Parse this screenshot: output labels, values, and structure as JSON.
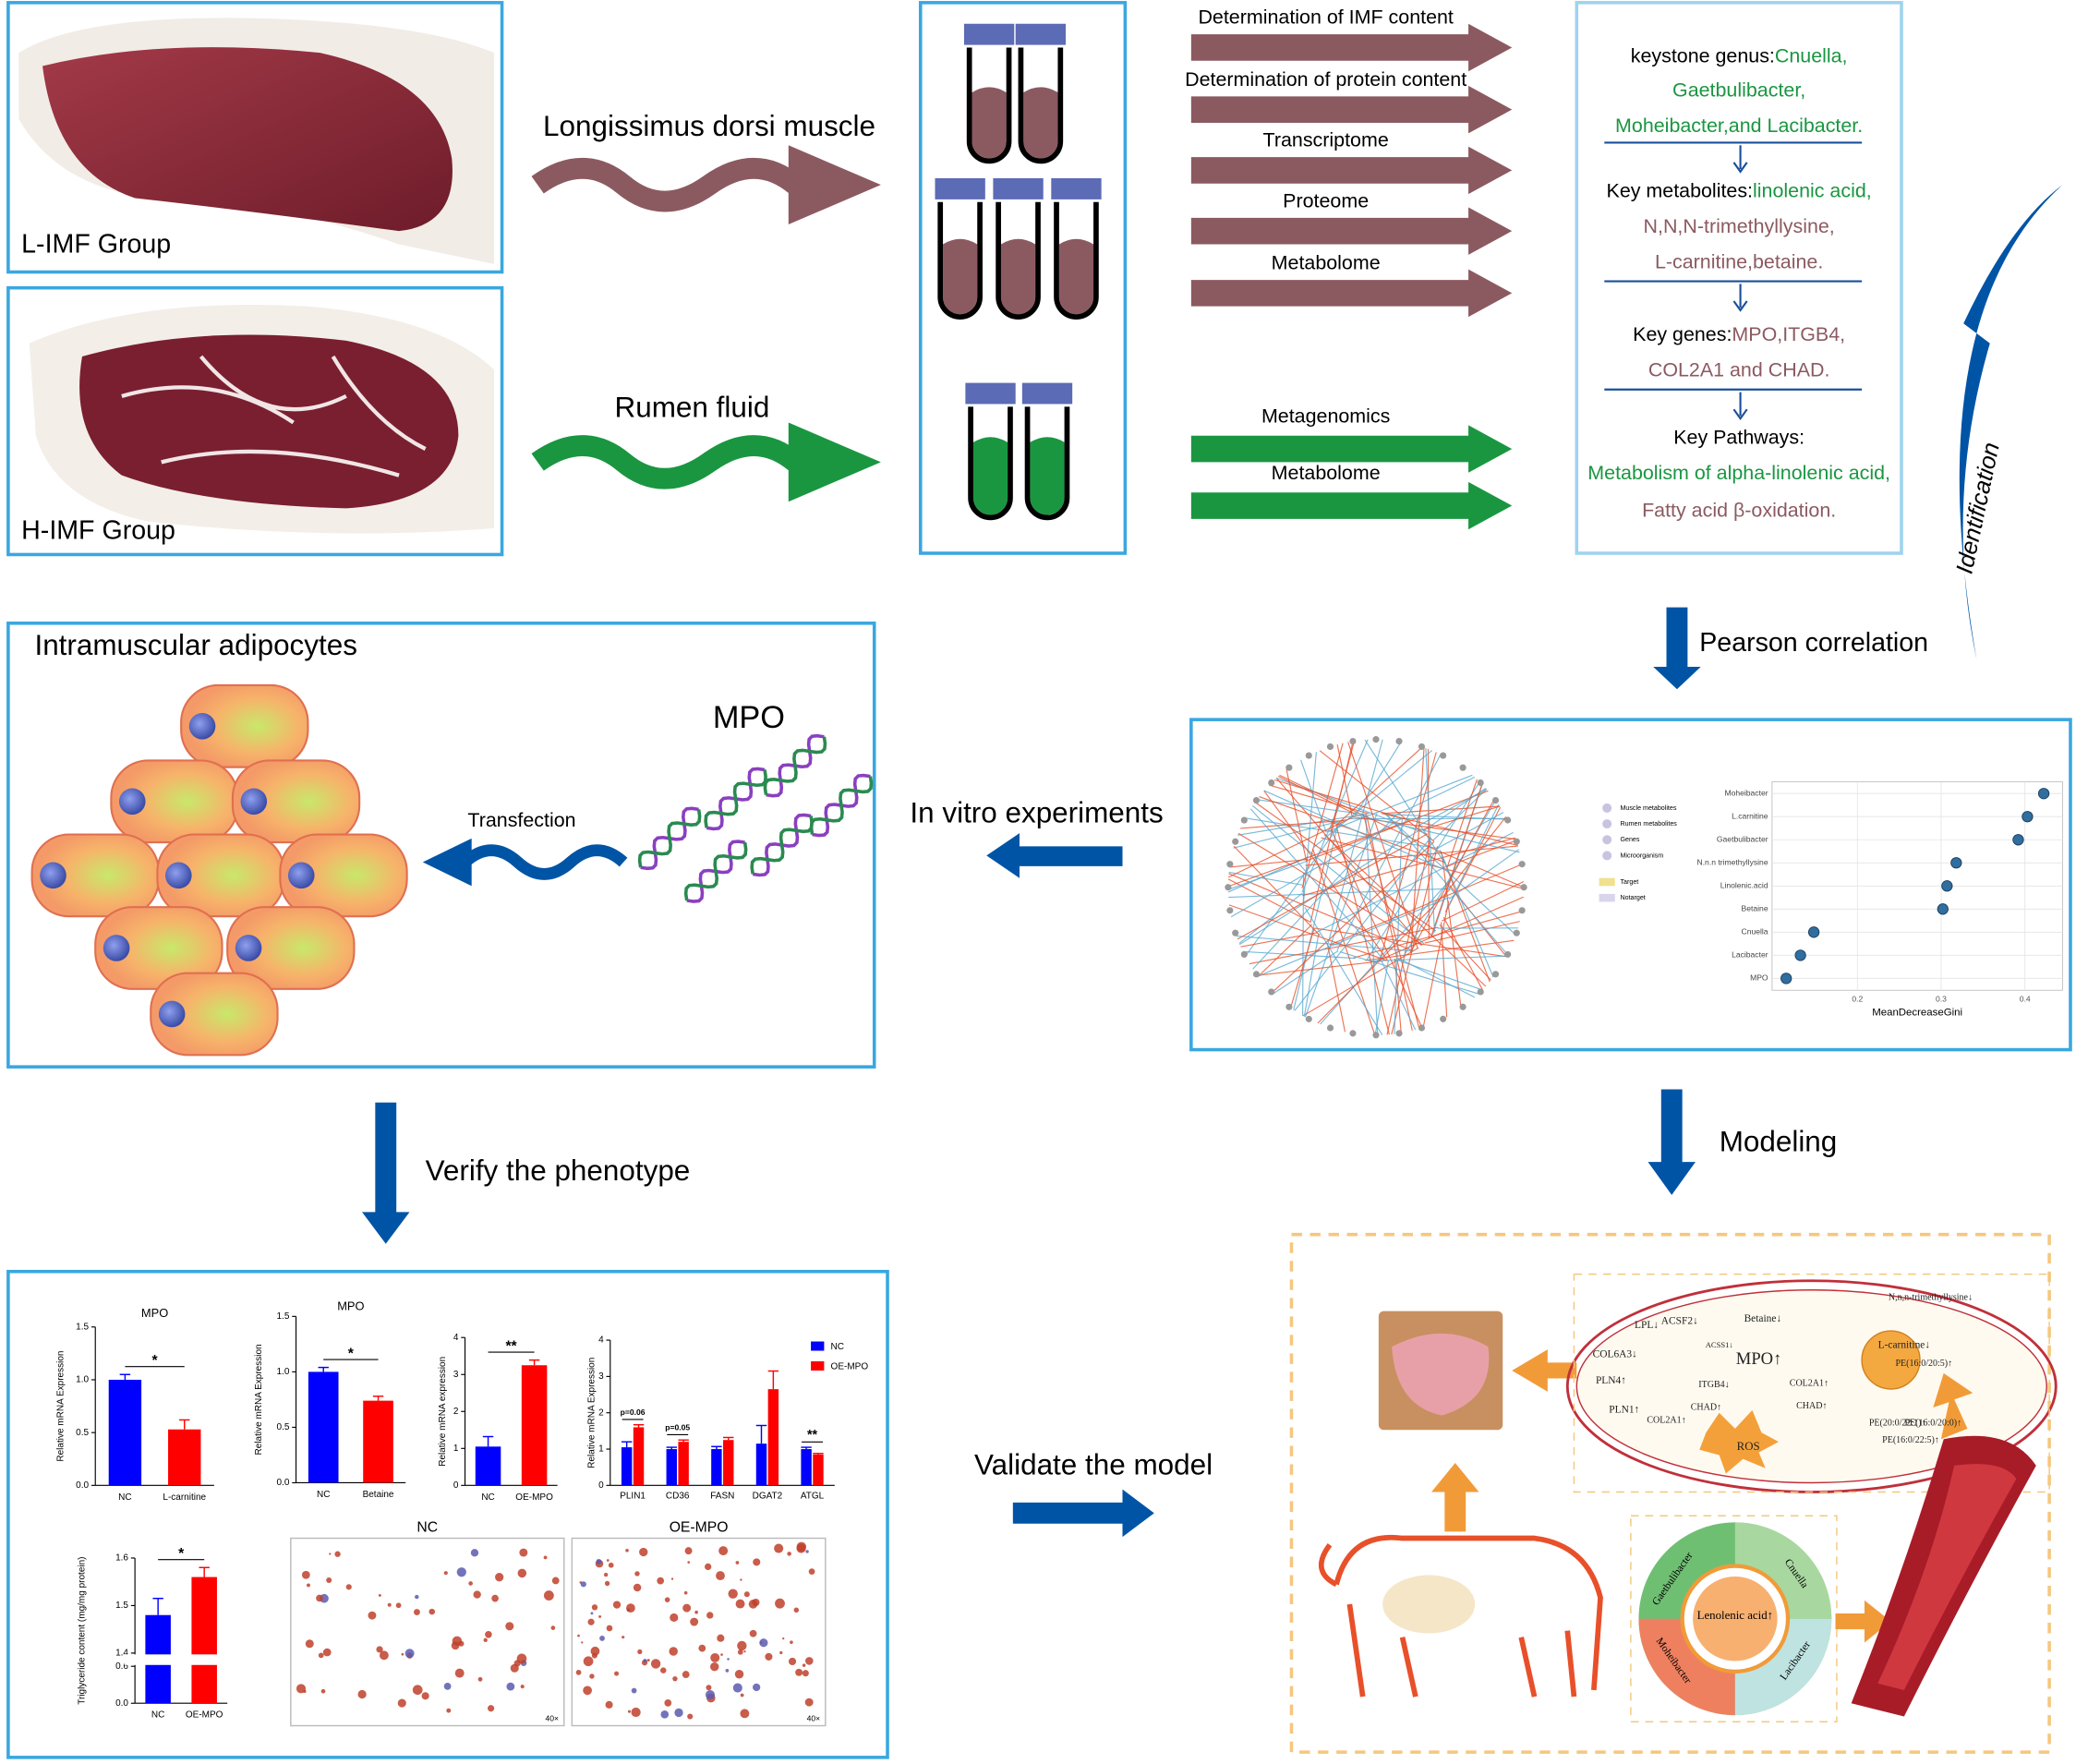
{
  "samples": {
    "low": "L-IMF Group",
    "high": "H-IMF Group"
  },
  "flows": {
    "muscle": "Longissimus dorsi muscle",
    "rumen": "Rumen fluid"
  },
  "analyses": {
    "muscle": [
      "Determination of IMF content",
      "Determination of protein content",
      "Transcriptome",
      "Proteome",
      "Metabolome"
    ],
    "rumen": [
      "Metagenomics",
      "Metabolome"
    ]
  },
  "findings": [
    [
      {
        "text": "keystone genus:",
        "color": "#000000"
      },
      {
        "text": "Cnuella,",
        "color": "#1a9641"
      }
    ],
    [
      {
        "text": "Gaetbulibacter,",
        "color": "#1a9641"
      }
    ],
    [
      {
        "text": "Moheibacter,and Lacibacter.",
        "color": "#1a9641"
      }
    ],
    [
      {
        "text": "Key metabolites:",
        "color": "#000000"
      },
      {
        "text": "linolenic acid,",
        "color": "#1a9641"
      }
    ],
    [
      {
        "text": "N,N,N-trimethyllysine,",
        "color": "#8b5a60"
      }
    ],
    [
      {
        "text": "L-carnitine,betaine.",
        "color": "#8b5a60"
      }
    ],
    [
      {
        "text": "Key genes:",
        "color": "#000000"
      },
      {
        "text": "MPO,ITGB4,",
        "color": "#8b5a60"
      }
    ],
    [
      {
        "text": "COL2A1 and CHAD.",
        "color": "#8b5a60"
      }
    ],
    [
      {
        "text": "Key Pathways:",
        "color": "#000000"
      }
    ],
    [
      {
        "text": "Metabolism of alpha-linolenic acid,",
        "color": "#1a9641"
      }
    ],
    [
      {
        "text": "Fatty acid β-oxidation.",
        "color": "#8b5a60"
      }
    ]
  ],
  "steps": {
    "identification": "Identification",
    "pearson": "Pearson correlation",
    "in_vitro": "In vitro experiments",
    "modeling": "Modeling",
    "verify": "Verify the phenotype",
    "validate": "Validate the model"
  },
  "adipocytes": {
    "title": "Intramuscular adipocytes",
    "gene": "MPO",
    "method": "Transfection"
  },
  "network_legend": [
    "Muscle metabolites",
    "Rumen metabolites",
    "Genes",
    "Microorganism",
    "Target",
    "Notarget"
  ],
  "importance": {
    "xlabel": "MeanDecreaseGini",
    "categories": [
      "Moheibacter",
      "L.carnitine",
      "Gaetbulibacter",
      "N.n.n trimethyllysine",
      "Linolenic.acid",
      "Betaine",
      "Cnuella",
      "Lacibacter",
      "MPO"
    ],
    "values": [
      0.4225,
      0.403,
      0.392,
      0.318,
      0.307,
      0.302,
      0.148,
      0.132,
      0.115
    ],
    "xlim": [
      0.106,
      0.437
    ],
    "xticks": [
      0.2,
      0.3,
      0.4
    ],
    "color": "#2f6e9e",
    "grid": true
  },
  "charts": [
    {
      "type": "bar",
      "title": "MPO",
      "ylabel": "Relative mRNA Expression",
      "categories": [
        "NC",
        "L-carnitine"
      ],
      "values": [
        1.0,
        0.53
      ],
      "errors": [
        0.05,
        0.09
      ],
      "colors": [
        "#0000ff",
        "#ff0000"
      ],
      "ylim": [
        0,
        1.5
      ],
      "yticks": [
        {
          "value": 0,
          "label": "0.0"
        },
        0.5,
        {
          "value": 1,
          "label": "1.0"
        },
        1.5
      ],
      "significance": "*"
    },
    {
      "type": "bar",
      "title": "MPO",
      "ylabel": "Relative mRNA Expression",
      "categories": [
        "NC",
        "Betaine"
      ],
      "values": [
        1.0,
        0.74
      ],
      "errors": [
        0.04,
        0.04
      ],
      "colors": [
        "#0000ff",
        "#ff0000"
      ],
      "ylim": [
        0,
        1.5
      ],
      "yticks": [
        {
          "value": 0,
          "label": "0.0"
        },
        0.5,
        {
          "value": 1,
          "label": "1.0"
        },
        1.5
      ],
      "significance": "*"
    },
    {
      "type": "bar",
      "ylabel": "Relative mRNA expression",
      "categories": [
        "NC",
        "OE-MPO"
      ],
      "values": [
        1.05,
        3.25
      ],
      "errors": [
        0.27,
        0.14
      ],
      "colors": [
        "#0000ff",
        "#ff0000"
      ],
      "ylim": [
        0,
        4
      ],
      "yticks": [
        0,
        1,
        2,
        3,
        4
      ],
      "significance": "**"
    },
    {
      "type": "grouped-bar",
      "ylabel": "Relative mRNA Expression",
      "categories": [
        "PLIN1",
        "CD36",
        "FASN",
        "DGAT2",
        "ATGL"
      ],
      "series": [
        {
          "name": "NC",
          "color": "#0000ff",
          "values": [
            1.05,
            1.0,
            1.0,
            1.15,
            1.0
          ],
          "errors": [
            0.15,
            0.05,
            0.07,
            0.5,
            0.05
          ]
        },
        {
          "name": "OE-MPO",
          "color": "#ff0000",
          "values": [
            1.6,
            1.2,
            1.25,
            2.65,
            0.85
          ],
          "errors": [
            0.07,
            0.05,
            0.07,
            0.5,
            0.03
          ]
        }
      ],
      "annotations": [
        "p=0.06",
        "p=0.05",
        null,
        null,
        "**"
      ],
      "ylim": [
        0,
        4
      ],
      "yticks": [
        0,
        1,
        2,
        3,
        4
      ]
    },
    {
      "type": "broken-bar",
      "ylabel": "Triglyceride content (mg/mg protein)",
      "categories": [
        "NC",
        "OE-MPO"
      ],
      "values": [
        1.48,
        1.56
      ],
      "errors": [
        0.035,
        0.02
      ],
      "colors": [
        "#0000ff",
        "#ff0000"
      ],
      "ylim": [
        0,
        1.6
      ],
      "ybreak": [
        0.6,
        1.4
      ],
      "yticks": [
        {
          "value": 0,
          "label": "0.0"
        },
        0.6,
        1.4,
        1.5,
        1.6
      ],
      "significance": "*"
    }
  ],
  "stains": [
    {
      "title": "NC",
      "magnification": "40×"
    },
    {
      "title": "OE-MPO",
      "magnification": "40×"
    }
  ],
  "model": {
    "labels": [
      "LPL↓",
      "ACSF2↓",
      "Betaine↓",
      "N,n,n-trimethyllysine↓",
      "ACSS1↓",
      "MPO↑",
      "COL6A3↓",
      "L-carnitine↓",
      "PLN4↑",
      "ITGB4↓",
      "COL2A1↑",
      "PLN1↑",
      "CHAD↑",
      "ROS",
      "COL2A1↑",
      "CHAD↑",
      "PE(16:0/20:5)↑",
      "PE(20:0/22:1)↑",
      "PE(16:0/20:0)↑",
      "PE(16:0/22:5)↑"
    ],
    "microbes": [
      "Gaetbulibacter",
      "Cnuella",
      "Moheibacter",
      "Lacibacter"
    ],
    "center": "Lenolenic acid↑"
  }
}
